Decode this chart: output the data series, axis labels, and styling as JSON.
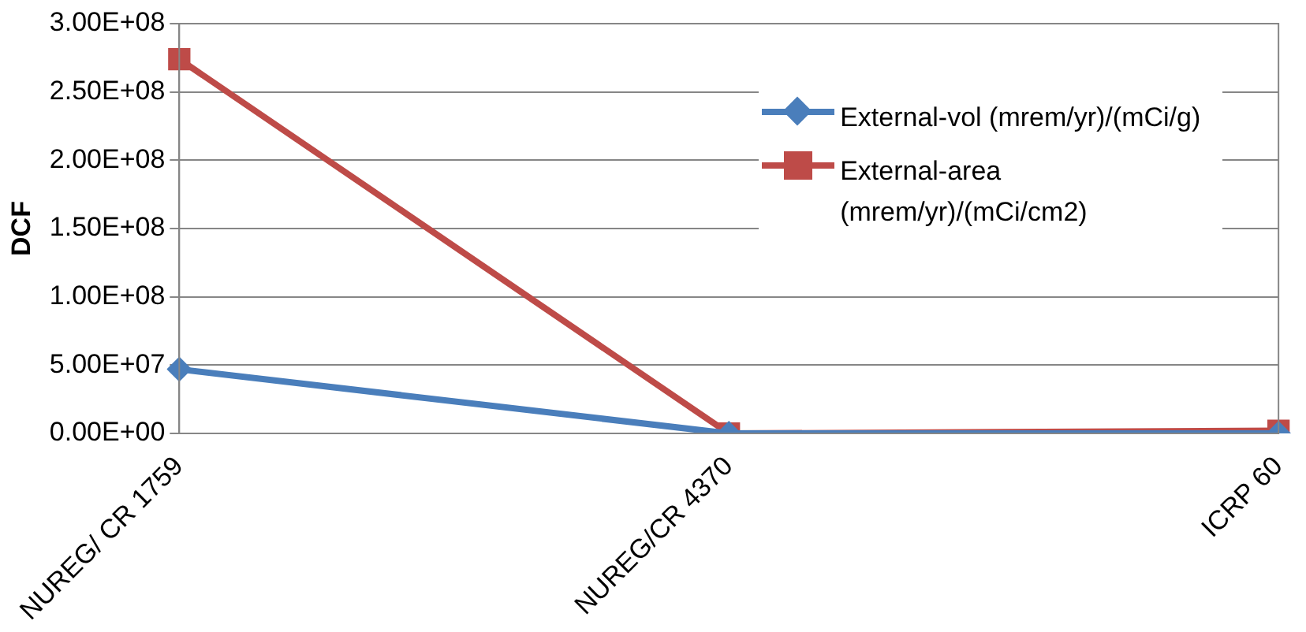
{
  "chart_data": {
    "type": "line",
    "ylabel": "DCF",
    "categories": [
      "NUREG/ CR 1759",
      "NUREG/CR 4370",
      "ICRP 60"
    ],
    "series": [
      {
        "name": "External-vol (mrem/yr)/(mCi/g)",
        "color": "#4a7ebb",
        "values": [
          47000000,
          0,
          0
        ]
      },
      {
        "name": "External-area (mrem/yr)/(mCi/cm2)",
        "color": "#be4b48",
        "values": [
          274000000,
          0,
          2000000
        ]
      }
    ],
    "ylim": [
      0,
      300000000
    ],
    "yticks": [
      {
        "value": 0,
        "label": "0.00E+00"
      },
      {
        "value": 50000000,
        "label": "5.00E+07"
      },
      {
        "value": 100000000,
        "label": "1.00E+08"
      },
      {
        "value": 150000000,
        "label": "1.50E+08"
      },
      {
        "value": 200000000,
        "label": "2.00E+08"
      },
      {
        "value": 250000000,
        "label": "2.50E+08"
      },
      {
        "value": 300000000,
        "label": "3.00E+08"
      }
    ],
    "grid": "y",
    "legend": "right",
    "marker": [
      "diamond",
      "square"
    ],
    "line_style": "solid"
  }
}
